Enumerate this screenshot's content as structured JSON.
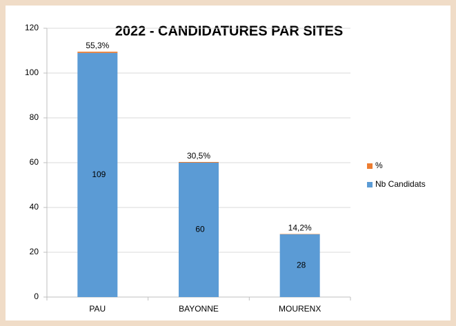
{
  "chart_data": {
    "type": "stacked_bar",
    "title": "2022 - CANDIDATURES PAR SITES",
    "categories": [
      "PAU",
      "BAYONNE",
      "MOURENX"
    ],
    "series": [
      {
        "name": "Nb Candidats",
        "color": "#5b9bd5",
        "values": [
          109,
          60,
          28
        ]
      },
      {
        "name": "%",
        "color": "#ed7d31",
        "values": [
          0.553,
          0.305,
          0.142
        ],
        "value_labels": [
          "55,3%",
          "30,5%",
          "14,2%"
        ]
      }
    ],
    "ylim": [
      0,
      120
    ],
    "yticks": [
      0,
      20,
      40,
      60,
      80,
      100,
      120
    ],
    "grid": true,
    "legend": "right"
  }
}
